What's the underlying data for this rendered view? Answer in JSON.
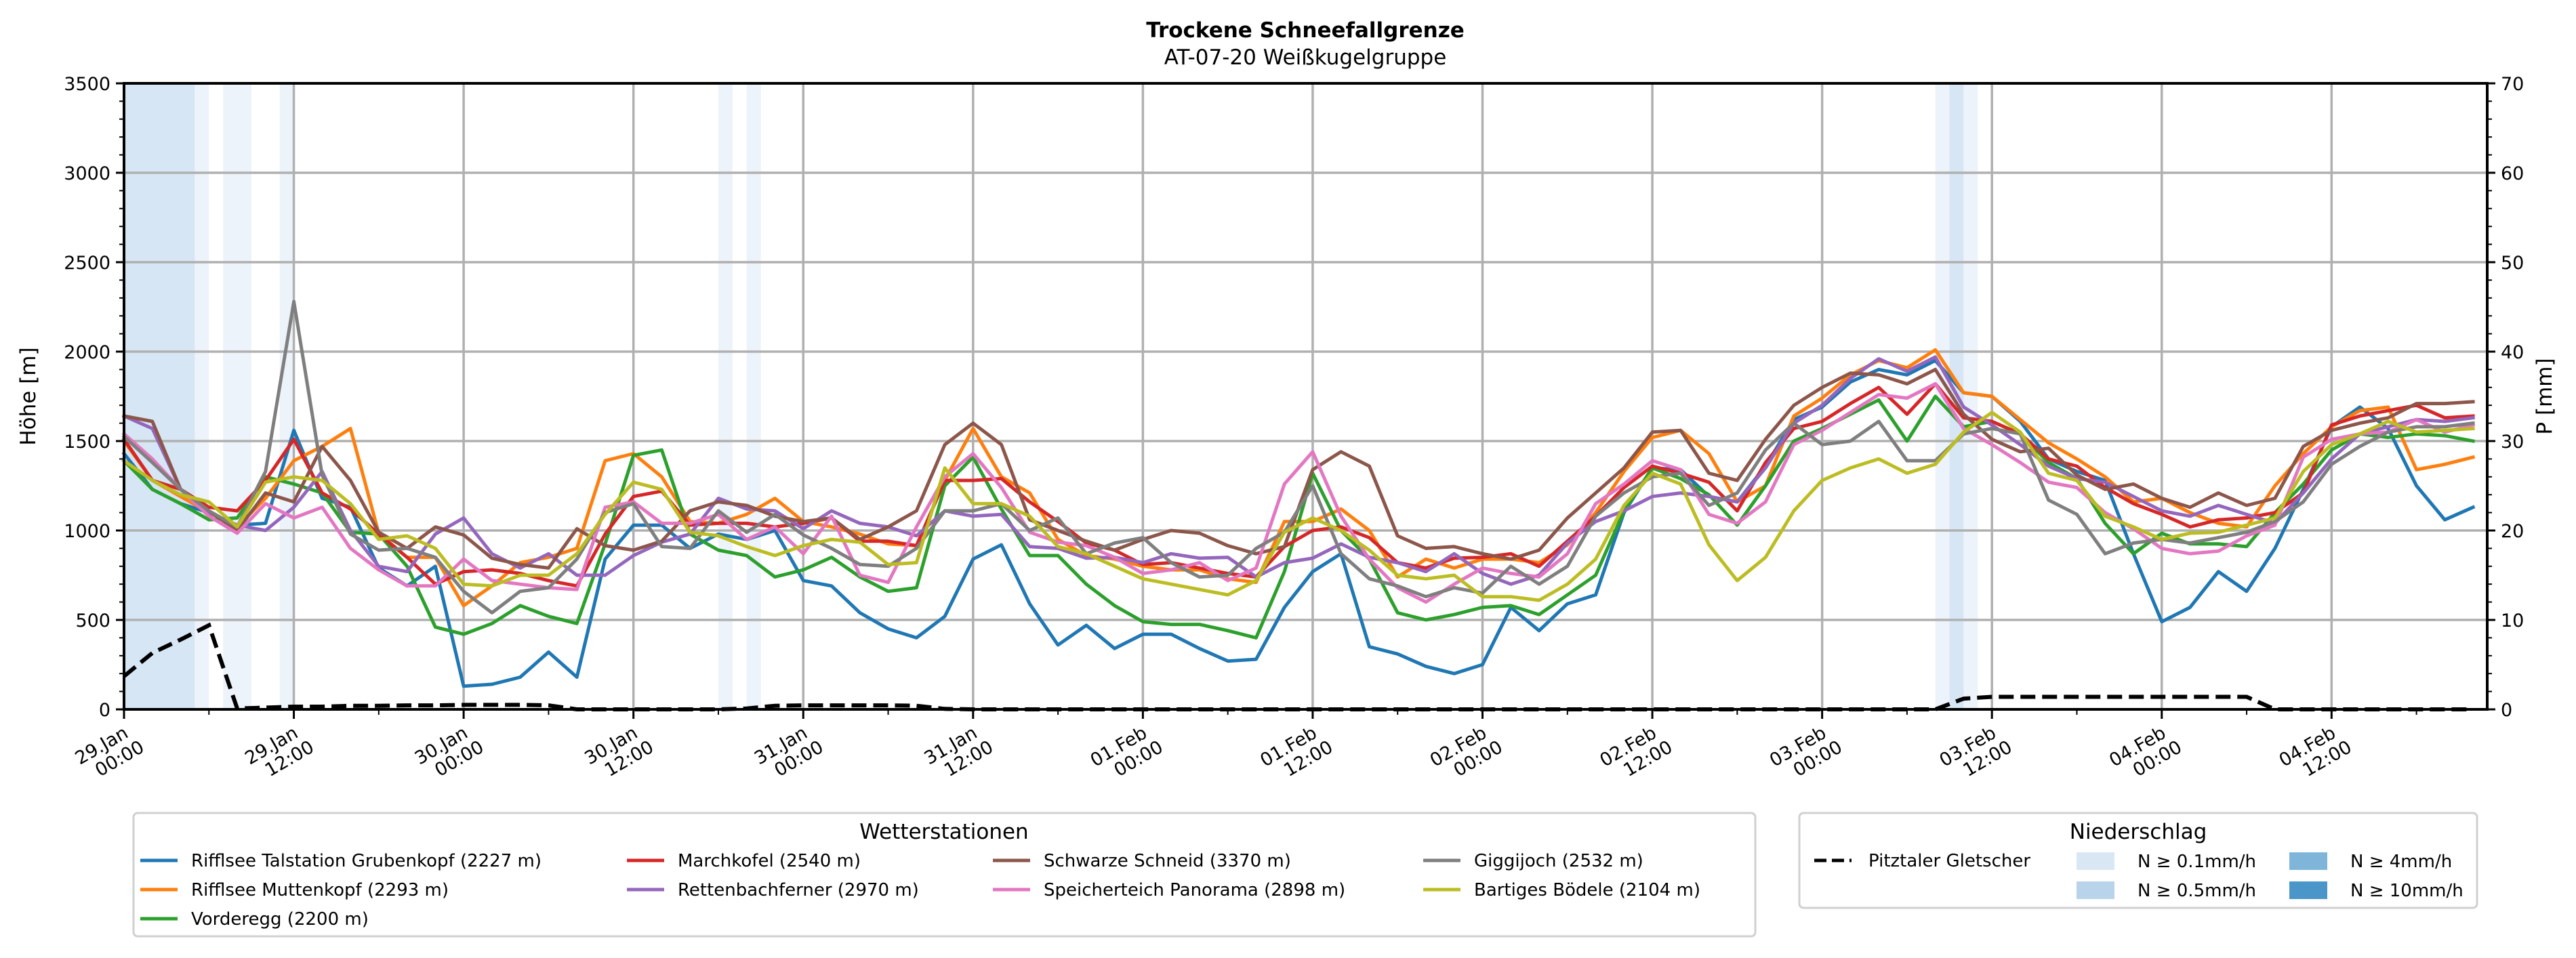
{
  "chart_data": {
    "type": "line",
    "title": "Trockene Schneefallgrenze",
    "subtitle": "AT-07-20 Weißkugelgruppe",
    "ylabel": "Höhe [m]",
    "ylabel_right": "P [mm]",
    "ylim": [
      0,
      3500
    ],
    "ylim_right": [
      0,
      70
    ],
    "yticks": [
      "0",
      "500",
      "1000",
      "1500",
      "2000",
      "2500",
      "3000",
      "3500"
    ],
    "yticks_right": [
      "0",
      "10",
      "20",
      "30",
      "40",
      "50",
      "60",
      "70"
    ],
    "x_unit": "hours since 29.Jan 00:00",
    "xlim_hours": [
      0,
      167
    ],
    "x_step_hours": 2,
    "xticks": [
      {
        "hour": 0,
        "day": "29.Jan",
        "time": "00:00"
      },
      {
        "hour": 12,
        "day": "29.Jan",
        "time": "12:00"
      },
      {
        "hour": 24,
        "day": "30.Jan",
        "time": "00:00"
      },
      {
        "hour": 36,
        "day": "30.Jan",
        "time": "12:00"
      },
      {
        "hour": 48,
        "day": "31.Jan",
        "time": "00:00"
      },
      {
        "hour": 60,
        "day": "31.Jan",
        "time": "12:00"
      },
      {
        "hour": 72,
        "day": "01.Feb",
        "time": "00:00"
      },
      {
        "hour": 84,
        "day": "01.Feb",
        "time": "12:00"
      },
      {
        "hour": 96,
        "day": "02.Feb",
        "time": "00:00"
      },
      {
        "hour": 108,
        "day": "02.Feb",
        "time": "12:00"
      },
      {
        "hour": 120,
        "day": "03.Feb",
        "time": "00:00"
      },
      {
        "hour": 132,
        "day": "03.Feb",
        "time": "12:00"
      },
      {
        "hour": 144,
        "day": "04.Feb",
        "time": "00:00"
      },
      {
        "hour": 156,
        "day": "04.Feb",
        "time": "12:00"
      }
    ],
    "grid": true,
    "series": [
      {
        "name": "Rifflsee Talstation Grubenkopf (2227 m)",
        "color": "#1f77b4",
        "values": [
          1430,
          1230,
          1150,
          1100,
          1030,
          1040,
          1560,
          1180,
          1130,
          790,
          690,
          800,
          130,
          140,
          180,
          320,
          180,
          840,
          1030,
          1030,
          900,
          980,
          950,
          1000,
          720,
          690,
          540,
          450,
          400,
          520,
          840,
          920,
          590,
          360,
          470,
          340,
          420,
          420,
          340,
          270,
          280,
          570,
          770,
          870,
          350,
          310,
          240,
          200,
          250,
          570,
          440,
          590,
          640,
          1100,
          1350,
          1340,
          1190,
          1160,
          1360,
          1620,
          1690,
          1830,
          1900,
          1870,
          1950,
          1770,
          1750,
          1610,
          1400,
          1330,
          1280,
          870,
          490,
          570,
          770,
          660,
          900,
          1230,
          1580,
          1690,
          1570,
          1250,
          1060,
          1130
        ]
      },
      {
        "name": "Rifflsee Muttenkopf (2293 m)",
        "color": "#ff7f0e",
        "values": [
          1500,
          1280,
          1190,
          1100,
          1020,
          1180,
          1390,
          1470,
          1570,
          985,
          850,
          850,
          580,
          690,
          820,
          850,
          900,
          1390,
          1430,
          1300,
          1050,
          1040,
          1090,
          1180,
          1050,
          1020,
          980,
          925,
          915,
          1280,
          1570,
          1300,
          1210,
          950,
          860,
          840,
          800,
          780,
          780,
          730,
          710,
          1050,
          1050,
          1120,
          1000,
          740,
          840,
          790,
          840,
          840,
          820,
          920,
          1100,
          1330,
          1520,
          1560,
          1430,
          1160,
          1250,
          1640,
          1740,
          1870,
          1950,
          1910,
          2010,
          1770,
          1750,
          1620,
          1490,
          1400,
          1300,
          1160,
          1180,
          1100,
          1040,
          1020,
          1250,
          1430,
          1580,
          1670,
          1690,
          1340,
          1370,
          1410
        ]
      },
      {
        "name": "Vorderegg (2200 m)",
        "color": "#2ca02c",
        "values": [
          1390,
          1230,
          1150,
          1060,
          1070,
          1300,
          1260,
          1210,
          990,
          980,
          800,
          460,
          420,
          480,
          580,
          520,
          480,
          925,
          1420,
          1450,
          980,
          890,
          860,
          740,
          780,
          850,
          740,
          660,
          680,
          1250,
          1410,
          1120,
          860,
          860,
          700,
          580,
          490,
          475,
          475,
          440,
          400,
          770,
          1320,
          1000,
          840,
          540,
          500,
          530,
          570,
          580,
          530,
          640,
          750,
          1110,
          1350,
          1290,
          1200,
          1030,
          1250,
          1500,
          1570,
          1650,
          1730,
          1500,
          1750,
          1580,
          1610,
          1540,
          1380,
          1290,
          1040,
          870,
          985,
          925,
          925,
          910,
          1100,
          1260,
          1450,
          1540,
          1520,
          1540,
          1530,
          1500
        ]
      },
      {
        "name": "Marchkofel (2540 m)",
        "color": "#d62728",
        "values": [
          1510,
          1280,
          1230,
          1130,
          1110,
          1280,
          1510,
          1210,
          1120,
          980,
          850,
          700,
          770,
          780,
          760,
          720,
          690,
          980,
          1190,
          1220,
          1030,
          1040,
          1040,
          1020,
          1040,
          1070,
          940,
          940,
          915,
          1280,
          1280,
          1290,
          1160,
          1050,
          930,
          890,
          810,
          820,
          790,
          760,
          740,
          910,
          1000,
          1020,
          960,
          820,
          790,
          845,
          850,
          870,
          800,
          940,
          1080,
          1240,
          1360,
          1320,
          1270,
          1110,
          1380,
          1570,
          1610,
          1710,
          1800,
          1650,
          1820,
          1630,
          1610,
          1540,
          1400,
          1360,
          1240,
          1150,
          1090,
          1020,
          1060,
          1070,
          1100,
          1210,
          1590,
          1640,
          1670,
          1700,
          1630,
          1640
        ]
      },
      {
        "name": "Rettenbachferner (2970 m)",
        "color": "#9467bd",
        "values": [
          1640,
          1570,
          1230,
          1100,
          1030,
          1000,
          1130,
          1330,
          1000,
          800,
          770,
          980,
          1070,
          870,
          790,
          870,
          750,
          750,
          860,
          935,
          980,
          1180,
          1120,
          1110,
          1010,
          1110,
          1040,
          1020,
          970,
          1110,
          1080,
          1090,
          910,
          900,
          845,
          850,
          820,
          870,
          845,
          850,
          740,
          820,
          845,
          925,
          850,
          820,
          770,
          870,
          760,
          700,
          750,
          930,
          1050,
          1110,
          1190,
          1210,
          1190,
          1160,
          1350,
          1600,
          1700,
          1850,
          1960,
          1890,
          1970,
          1690,
          1590,
          1480,
          1360,
          1290,
          1270,
          1190,
          1110,
          1080,
          1140,
          1090,
          1040,
          1210,
          1400,
          1540,
          1580,
          1620,
          1610,
          1630
        ]
      },
      {
        "name": "Schwarze Schneid (3370 m)",
        "color": "#8c564b",
        "values": [
          1640,
          1610,
          1230,
          1110,
          1000,
          1210,
          1160,
          1470,
          1280,
          990,
          900,
          1020,
          975,
          845,
          810,
          790,
          1010,
          915,
          890,
          940,
          1110,
          1160,
          1140,
          1080,
          1050,
          1070,
          950,
          1020,
          1110,
          1480,
          1600,
          1480,
          1060,
          1000,
          940,
          890,
          950,
          1000,
          985,
          915,
          870,
          910,
          1340,
          1440,
          1360,
          970,
          900,
          910,
          870,
          840,
          890,
          1070,
          1210,
          1350,
          1550,
          1560,
          1320,
          1280,
          1510,
          1700,
          1800,
          1880,
          1870,
          1820,
          1900,
          1650,
          1510,
          1440,
          1460,
          1310,
          1230,
          1260,
          1180,
          1130,
          1210,
          1140,
          1180,
          1470,
          1560,
          1600,
          1630,
          1710,
          1710,
          1720
        ]
      },
      {
        "name": "Speicherteich Panorama (2898 m)",
        "color": "#e377c2",
        "values": [
          1540,
          1400,
          1230,
          1080,
          985,
          1150,
          1070,
          1130,
          900,
          780,
          690,
          690,
          840,
          720,
          700,
          680,
          670,
          1130,
          1160,
          1040,
          1040,
          1090,
          950,
          1020,
          870,
          1080,
          750,
          710,
          1020,
          1300,
          1430,
          1240,
          990,
          935,
          915,
          850,
          760,
          780,
          820,
          720,
          790,
          1260,
          1440,
          1080,
          840,
          680,
          600,
          700,
          790,
          760,
          740,
          870,
          1150,
          1260,
          1390,
          1340,
          1090,
          1040,
          1160,
          1480,
          1560,
          1660,
          1760,
          1740,
          1820,
          1570,
          1480,
          1380,
          1270,
          1240,
          1100,
          1010,
          900,
          870,
          885,
          970,
          1030,
          1410,
          1510,
          1540,
          1550,
          1620,
          1550,
          1590
        ]
      },
      {
        "name": "Giggijoch (2532 m)",
        "color": "#7f7f7f",
        "values": [
          1525,
          1380,
          1230,
          1110,
          1020,
          1330,
          2280,
          1310,
          980,
          890,
          900,
          850,
          660,
          540,
          660,
          680,
          840,
          1100,
          1150,
          910,
          900,
          1110,
          990,
          1090,
          975,
          900,
          810,
          800,
          900,
          1110,
          1110,
          1150,
          1000,
          1070,
          870,
          930,
          960,
          820,
          740,
          750,
          900,
          990,
          1250,
          870,
          730,
          690,
          630,
          680,
          650,
          800,
          700,
          800,
          1080,
          1210,
          1300,
          1320,
          1140,
          1210,
          1450,
          1600,
          1480,
          1500,
          1610,
          1390,
          1390,
          1540,
          1570,
          1540,
          1170,
          1090,
          870,
          930,
          950,
          930,
          960,
          990,
          1050,
          1160,
          1370,
          1470,
          1550,
          1580,
          1580,
          1600
        ]
      },
      {
        "name": "Bartiges Bödele (2104 m)",
        "color": "#bcbd22",
        "values": [
          1390,
          1280,
          1200,
          1160,
          1020,
          1270,
          1300,
          1280,
          1150,
          950,
          970,
          900,
          700,
          690,
          750,
          750,
          870,
          1090,
          1270,
          1230,
          990,
          970,
          910,
          860,
          915,
          950,
          935,
          810,
          820,
          1350,
          1150,
          1150,
          1080,
          910,
          870,
          800,
          730,
          700,
          670,
          640,
          720,
          990,
          1070,
          1000,
          890,
          750,
          730,
          750,
          630,
          630,
          610,
          700,
          840,
          1140,
          1320,
          1260,
          920,
          720,
          850,
          1110,
          1280,
          1350,
          1400,
          1320,
          1370,
          1550,
          1660,
          1550,
          1320,
          1280,
          1080,
          1020,
          950,
          985,
          990,
          1030,
          1070,
          1330,
          1480,
          1540,
          1610,
          1550,
          1560,
          1570
        ]
      }
    ],
    "precip_series": {
      "name": "Pitztaler Gletscher",
      "axis": "right",
      "unit": "mm",
      "color": "#000000",
      "style": "dashed",
      "values": [
        3.7,
        6.3,
        7.8,
        9.4,
        0.1,
        0.2,
        0.3,
        0.3,
        0.4,
        0.4,
        0.45,
        0.45,
        0.5,
        0.5,
        0.5,
        0.45,
        0,
        0,
        0,
        0,
        0,
        0,
        0.1,
        0.4,
        0.45,
        0.45,
        0.45,
        0.45,
        0.4,
        0.05,
        0,
        0,
        0,
        0,
        0,
        0,
        0,
        0,
        0,
        0,
        0,
        0,
        0,
        0,
        0,
        0,
        0,
        0,
        0,
        0,
        0,
        0,
        0,
        0,
        0,
        0,
        0,
        0,
        0,
        0,
        0,
        0,
        0,
        0,
        0,
        1.2,
        1.4,
        1.4,
        1.4,
        1.4,
        1.4,
        1.4,
        1.4,
        1.4,
        1.4,
        1.4,
        0,
        0,
        0,
        0,
        0,
        0,
        0,
        0
      ]
    },
    "precip_bands": [
      {
        "start_hour": 0,
        "end_hour": 5,
        "level": "N ≥ 0.5mm/h"
      },
      {
        "start_hour": 5,
        "end_hour": 6,
        "level": "N ≥ 0.1mm/h"
      },
      {
        "start_hour": 7,
        "end_hour": 9,
        "level": "N ≥ 0.1mm/h"
      },
      {
        "start_hour": 11,
        "end_hour": 12,
        "level": "N ≥ 0.1mm/h"
      },
      {
        "start_hour": 42,
        "end_hour": 43,
        "level": "N ≥ 0.1mm/h"
      },
      {
        "start_hour": 44,
        "end_hour": 45,
        "level": "N ≥ 0.1mm/h"
      },
      {
        "start_hour": 128,
        "end_hour": 129,
        "level": "N ≥ 0.1mm/h"
      },
      {
        "start_hour": 129,
        "end_hour": 130,
        "level": "N ≥ 0.5mm/h"
      },
      {
        "start_hour": 130,
        "end_hour": 131,
        "level": "N ≥ 0.1mm/h"
      }
    ],
    "legend_stations": {
      "title": "Wetterstationen",
      "placement": "bottom-left"
    },
    "legend_precip": {
      "title": "Niederschlag",
      "placement": "bottom-right",
      "line_label": "Pitztaler Gletscher",
      "levels": [
        {
          "label": "N ≥ 0.1mm/h",
          "color": "#d9e7f4",
          "band_color": "#edf3fa"
        },
        {
          "label": "N ≥ 0.5mm/h",
          "color": "#b9d4ea",
          "band_color": "#d6e6f4"
        },
        {
          "label": "N ≥ 4mm/h",
          "color": "#7fb5d9",
          "band_color": "#bfd9ec"
        },
        {
          "label": "N ≥ 10mm/h",
          "color": "#4a96c9",
          "band_color": "#a4c9e4"
        }
      ]
    }
  }
}
